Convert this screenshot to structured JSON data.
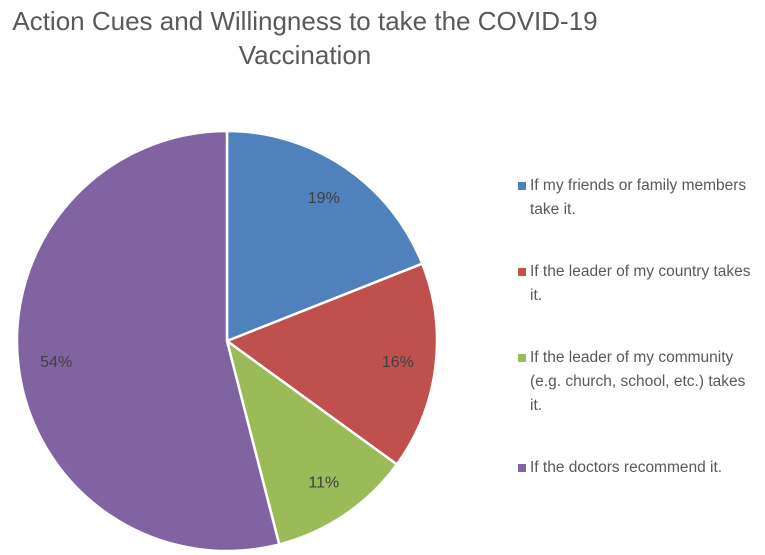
{
  "chart_data": {
    "type": "pie",
    "title": "Action Cues and Willingness to take the COVID-19 Vaccination",
    "categories": [
      "If my friends or family members take it.",
      "If the leader of my country takes it.",
      "If the leader of my community (e.g. church, school, etc.) takes it.",
      "If the doctors recommend it."
    ],
    "values": [
      19,
      16,
      11,
      54
    ],
    "value_labels": [
      "19%",
      "16%",
      "11%",
      "54%"
    ],
    "colors": [
      "#4f81bd",
      "#c0504d",
      "#9bbb59",
      "#8064a2"
    ],
    "legend": "right"
  }
}
